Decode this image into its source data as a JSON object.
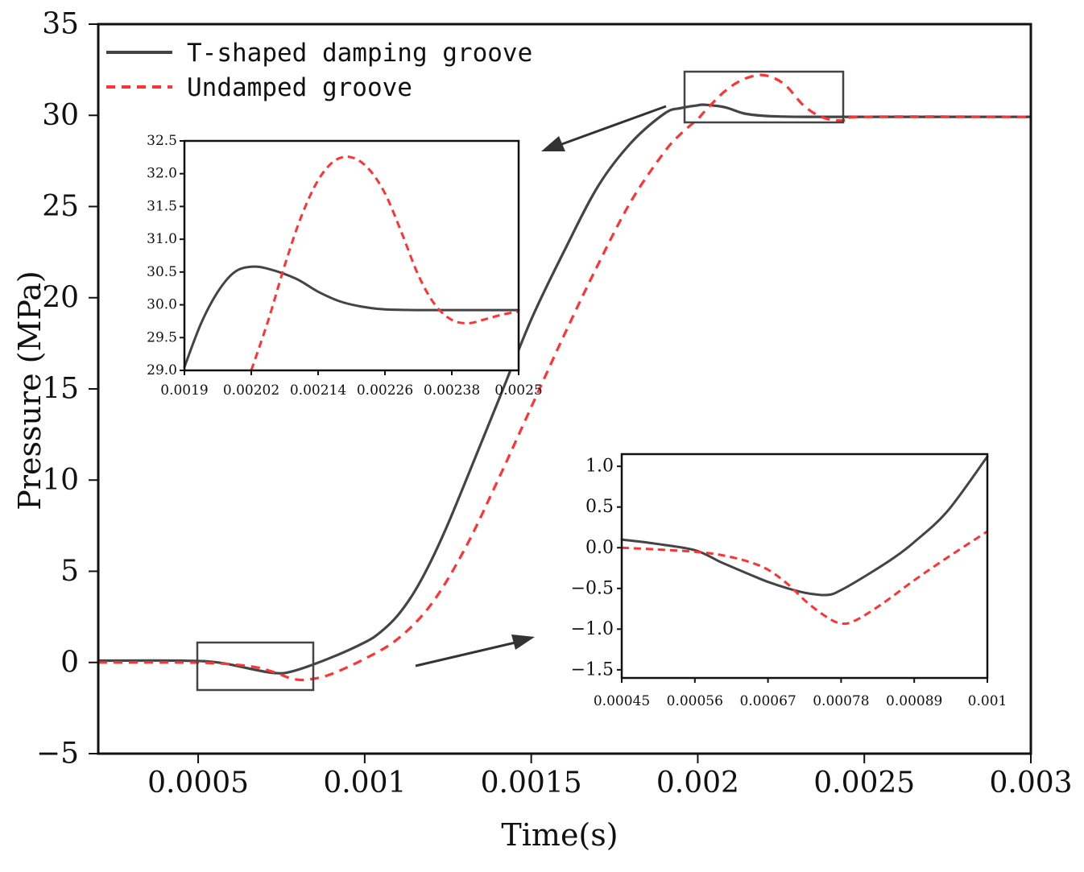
{
  "chart_data": [
    {
      "id": "main",
      "type": "line",
      "xlabel": "Time(s)",
      "ylabel": "Pressure (MPa)",
      "xlim": [
        0.0002,
        0.003
      ],
      "ylim": [
        -5,
        35
      ],
      "xticks": [
        0.0005,
        0.001,
        0.0015,
        0.002,
        0.0025,
        0.003
      ],
      "xtick_labels": [
        "0.0005",
        "0.001",
        "0.0015",
        "0.002",
        "0.0025",
        "0.003"
      ],
      "yticks": [
        -5,
        0,
        5,
        10,
        15,
        20,
        25,
        30,
        35
      ],
      "ytick_labels": [
        "-5",
        "0",
        "5",
        "10",
        "15",
        "20",
        "25",
        "30",
        "35"
      ],
      "legend": {
        "position": "top-left"
      },
      "series": [
        {
          "name": "T-shaped damping groove",
          "color": "#444444",
          "dash": "solid",
          "x": [
            0.0002,
            0.00045,
            0.00056,
            0.00067,
            0.00073,
            0.00078,
            0.00089,
            0.001,
            0.00105,
            0.0011,
            0.00115,
            0.0012,
            0.00125,
            0.0013,
            0.0014,
            0.0015,
            0.0016,
            0.0017,
            0.0018,
            0.0019,
            0.00195,
            0.002,
            0.00202,
            0.00208,
            0.00214,
            0.0022,
            0.00226,
            0.00232,
            0.0025,
            0.003
          ],
          "y": [
            0.1,
            0.1,
            0.0,
            -0.4,
            -0.58,
            -0.5,
            0.2,
            1.1,
            1.7,
            2.6,
            3.9,
            5.6,
            7.6,
            9.8,
            14.3,
            18.8,
            22.6,
            26.1,
            28.5,
            30.1,
            30.4,
            30.55,
            30.58,
            30.45,
            30.1,
            29.97,
            29.93,
            29.92,
            29.92,
            29.92
          ]
        },
        {
          "name": "Undamped groove",
          "color": "#ff3333",
          "dash": "dashed",
          "x": [
            0.0002,
            0.00045,
            0.00056,
            0.00067,
            0.00073,
            0.00078,
            0.00082,
            0.00089,
            0.001,
            0.0011,
            0.0012,
            0.0013,
            0.0014,
            0.0015,
            0.0016,
            0.0017,
            0.0018,
            0.0019,
            0.00195,
            0.002,
            0.00202,
            0.00208,
            0.00214,
            0.0022,
            0.00226,
            0.00232,
            0.00238,
            0.00244,
            0.0025,
            0.003
          ],
          "y": [
            0.0,
            0.0,
            -0.05,
            -0.25,
            -0.55,
            -0.88,
            -0.95,
            -0.7,
            0.2,
            1.3,
            3.2,
            6.2,
            10.0,
            14.0,
            18.0,
            21.8,
            25.3,
            28.0,
            29.0,
            29.8,
            30.2,
            31.3,
            32.0,
            32.2,
            31.7,
            30.5,
            29.85,
            29.72,
            29.92,
            29.92
          ]
        }
      ]
    },
    {
      "id": "inset-top",
      "type": "line",
      "xlim": [
        0.0019,
        0.0025
      ],
      "ylim": [
        29.0,
        32.5
      ],
      "xticks": [
        0.0019,
        0.00202,
        0.00214,
        0.00226,
        0.00238,
        0.0025
      ],
      "xtick_labels": [
        "0.0019",
        "0.00202",
        "0.00214",
        "0.00226",
        "0.00238",
        "0.0025"
      ],
      "yticks": [
        29.0,
        29.5,
        30.0,
        30.5,
        31.0,
        31.5,
        32.0,
        32.5
      ],
      "ytick_labels": [
        "29.0",
        "29.5",
        "30.0",
        "30.5",
        "31.0",
        "31.5",
        "32.0",
        "32.5"
      ],
      "series": [
        {
          "name": "T-shaped damping groove",
          "color": "#444444",
          "dash": "solid",
          "x": [
            0.0019,
            0.00193,
            0.00196,
            0.00199,
            0.00202,
            0.00205,
            0.0021,
            0.00214,
            0.00218,
            0.00222,
            0.00226,
            0.00232,
            0.0025
          ],
          "y": [
            29.05,
            29.72,
            30.2,
            30.5,
            30.58,
            30.55,
            30.4,
            30.2,
            30.05,
            29.97,
            29.93,
            29.92,
            29.92
          ]
        },
        {
          "name": "Undamped groove",
          "color": "#ff3333",
          "dash": "dashed",
          "x": [
            0.00202,
            0.00205,
            0.00208,
            0.00211,
            0.00214,
            0.00217,
            0.0022,
            0.00223,
            0.00226,
            0.00229,
            0.00232,
            0.00235,
            0.00238,
            0.00241,
            0.00244,
            0.00247,
            0.0025
          ],
          "y": [
            29.0,
            29.75,
            30.6,
            31.35,
            31.9,
            32.2,
            32.25,
            32.08,
            31.7,
            31.1,
            30.45,
            30.0,
            29.77,
            29.72,
            29.78,
            29.85,
            29.9
          ]
        }
      ]
    },
    {
      "id": "inset-bottom",
      "type": "line",
      "xlim": [
        0.00045,
        0.001
      ],
      "ylim": [
        -1.6,
        1.15
      ],
      "xticks": [
        0.00045,
        0.00056,
        0.00067,
        0.00078,
        0.00089,
        0.001
      ],
      "xtick_labels": [
        "0.00045",
        "0.00056",
        "0.00067",
        "0.00078",
        "0.00089",
        "0.001"
      ],
      "yticks": [
        -1.5,
        -1.0,
        -0.5,
        0.0,
        0.5,
        1.0
      ],
      "ytick_labels": [
        "-1.5",
        "-1.0",
        "-0.5",
        "0.0",
        "0.5",
        "1.0"
      ],
      "series": [
        {
          "name": "T-shaped damping groove",
          "color": "#444444",
          "dash": "solid",
          "x": [
            0.00045,
            0.0005,
            0.00056,
            0.0006,
            0.00064,
            0.00067,
            0.0007,
            0.00073,
            0.00076,
            0.00078,
            0.00082,
            0.00086,
            0.00089,
            0.00094,
            0.001
          ],
          "y": [
            0.1,
            0.05,
            -0.03,
            -0.18,
            -0.32,
            -0.42,
            -0.5,
            -0.56,
            -0.58,
            -0.52,
            -0.33,
            -0.12,
            0.07,
            0.45,
            1.12
          ]
        },
        {
          "name": "Undamped groove",
          "color": "#ff3333",
          "dash": "dashed",
          "x": [
            0.00045,
            0.0005,
            0.00056,
            0.0006,
            0.00064,
            0.00067,
            0.0007,
            0.00073,
            0.00076,
            0.00078,
            0.0008,
            0.00084,
            0.00089,
            0.00094,
            0.001
          ],
          "y": [
            0.0,
            -0.02,
            -0.05,
            -0.09,
            -0.17,
            -0.27,
            -0.45,
            -0.68,
            -0.86,
            -0.93,
            -0.9,
            -0.7,
            -0.4,
            -0.12,
            0.2
          ]
        }
      ]
    }
  ]
}
